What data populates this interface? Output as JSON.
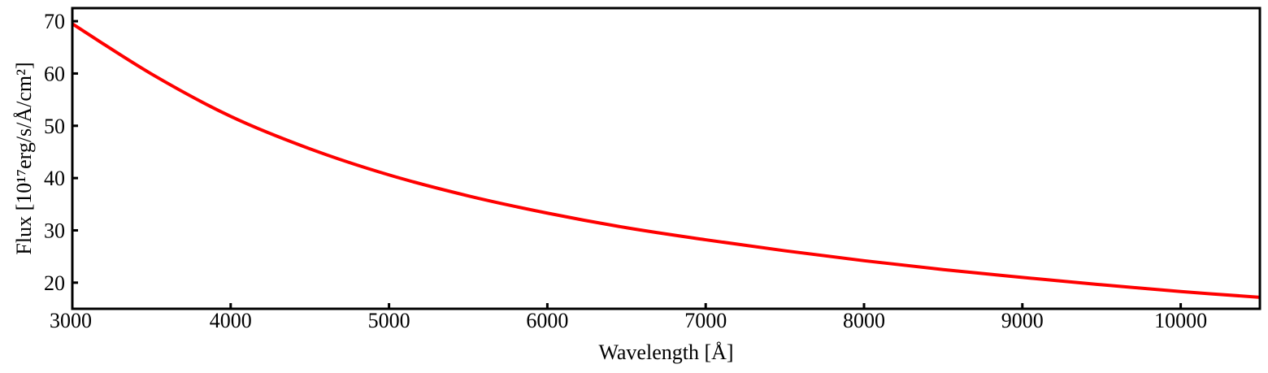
{
  "chart_data": {
    "type": "line",
    "xlabel": "Wavelength [Å]",
    "ylabel": "Flux [10¹⁷erg/s/Å/cm²]",
    "xlim": [
      3000,
      10500
    ],
    "ylim": [
      15,
      72.5
    ],
    "xticks": [
      3000,
      4000,
      5000,
      6000,
      7000,
      8000,
      9000,
      10000
    ],
    "yticks": [
      20,
      30,
      40,
      50,
      60,
      70
    ],
    "grid": false,
    "series": [
      {
        "color": "#ff0000",
        "x": [
          3000,
          3500,
          4000,
          4500,
          5000,
          5500,
          6000,
          6500,
          7000,
          7500,
          8000,
          8500,
          9000,
          9500,
          10000,
          10500
        ],
        "y": [
          69.5,
          59.9,
          51.8,
          45.6,
          40.6,
          36.6,
          33.3,
          30.5,
          28.2,
          26.1,
          24.2,
          22.5,
          21.0,
          19.6,
          18.3,
          17.2
        ]
      }
    ]
  }
}
